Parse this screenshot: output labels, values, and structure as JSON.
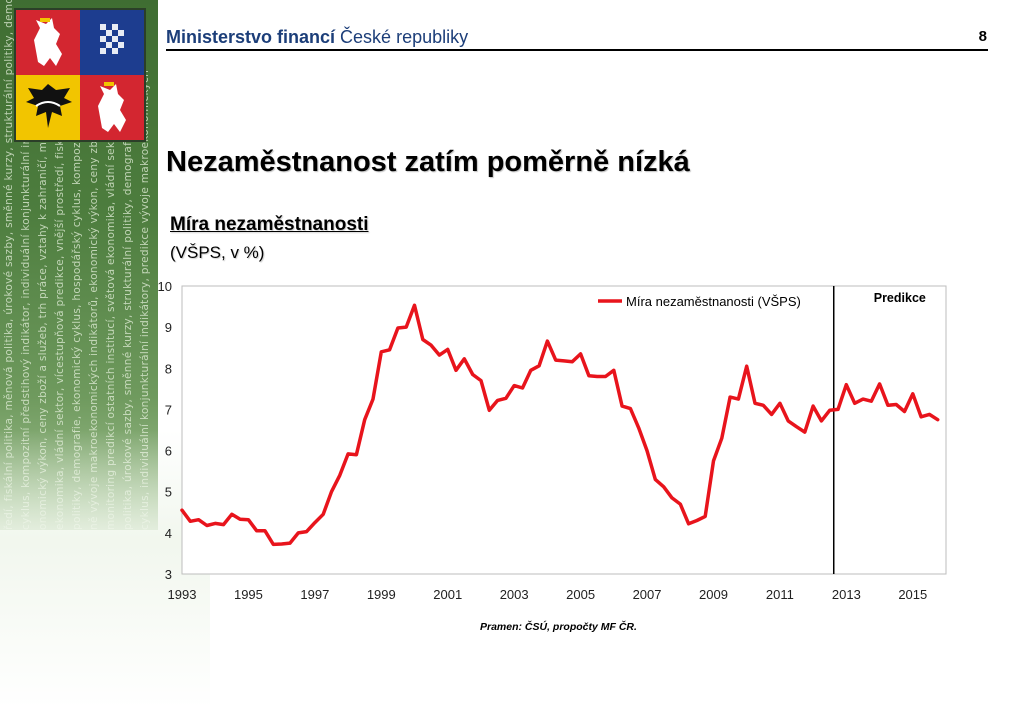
{
  "header": {
    "org_bold": "Ministerstvo financí",
    "org_rest": "České republiky",
    "page_number": "8"
  },
  "slide": {
    "title": "Nezaměstnanost zatím poměrně nízká"
  },
  "chart_title": "Míra nezaměstnanosti",
  "chart_subtitle": "(VŠPS, v %)",
  "source": "Pramen: ČSÚ, propočty MF ČR.",
  "side_banner_text": [
    "ředí, fiskální politika, měnová politika, úrokové sazby, směnné kurzy, strukturální politiky, demografie,",
    "cyklus, kompozitní předstihový indikátor, individuální konjunkturální indikátor",
    "onomický výkon, ceny zboží a služeb, trh práce, vztahy k zahraničí, mezinárodní",
    "ekonomika, vládní sektor, vícestupňová predikce, vnější prostředí, fiskální politika,",
    "politiky, demografie, ekonomický cyklus, hospodářský cyklus, kompozitní předstihový",
    "ně vývoje makroekonomických indikátorů, ekonomický výkon, ceny zboží a služeb",
    "monitoring predikcí ostatních institucí, světová ekonomika, vládní sektor, vnější",
    "politika, úrokové sazby, směnné kurzy, strukturální politiky, demografie, ekonomický",
    "cyklus, individuální konjunkturální indikátory, predikce vývoje makroekonomických"
  ],
  "colors": {
    "series": "#e8141c",
    "header_blue": "#1c3e79",
    "banner_green": "#4d7d3e"
  },
  "chart_data": {
    "type": "line",
    "title": "",
    "xlabel": "",
    "ylabel": "",
    "ylim": [
      3,
      10
    ],
    "yticks": [
      "3",
      "4",
      "5",
      "6",
      "7",
      "8",
      "9",
      "10"
    ],
    "xtick_labels": [
      "1993",
      "1995",
      "1997",
      "1999",
      "2001",
      "2003",
      "2005",
      "2007",
      "2009",
      "2011",
      "2013",
      "2015"
    ],
    "x_start": "1993 Q1",
    "x_end": "2015 Q4",
    "frequency": "quarterly",
    "grid": false,
    "legend_position": "top-center",
    "annotation": "Predikce",
    "forecast_start": "2012 Q3",
    "series": [
      {
        "name": "Míra nezaměstnanosti (VŠPS)",
        "values": [
          4.55,
          4.28,
          4.32,
          4.18,
          4.23,
          4.2,
          4.45,
          4.33,
          4.32,
          4.05,
          4.05,
          3.72,
          3.73,
          3.75,
          4.0,
          4.03,
          4.25,
          4.45,
          5.0,
          5.4,
          5.92,
          5.9,
          6.75,
          7.25,
          8.4,
          8.45,
          8.98,
          9.0,
          9.53,
          8.7,
          8.56,
          8.32,
          8.46,
          7.95,
          8.23,
          7.85,
          7.7,
          6.98,
          7.22,
          7.27,
          7.58,
          7.52,
          7.95,
          8.06,
          8.66,
          8.2,
          8.18,
          8.16,
          8.35,
          7.82,
          7.8,
          7.8,
          7.95,
          7.08,
          7.02,
          6.55,
          6.0,
          5.3,
          5.12,
          4.85,
          4.7,
          4.22,
          4.3,
          4.4,
          5.75,
          6.3,
          7.3,
          7.25,
          8.05,
          7.15,
          7.1,
          6.88,
          7.15,
          6.72,
          6.58,
          6.45,
          7.08,
          6.72,
          6.98,
          7.0,
          7.6,
          7.15,
          7.25,
          7.2,
          7.62,
          7.1,
          7.12,
          6.95,
          7.38,
          6.82,
          6.88,
          6.75
        ]
      }
    ]
  }
}
